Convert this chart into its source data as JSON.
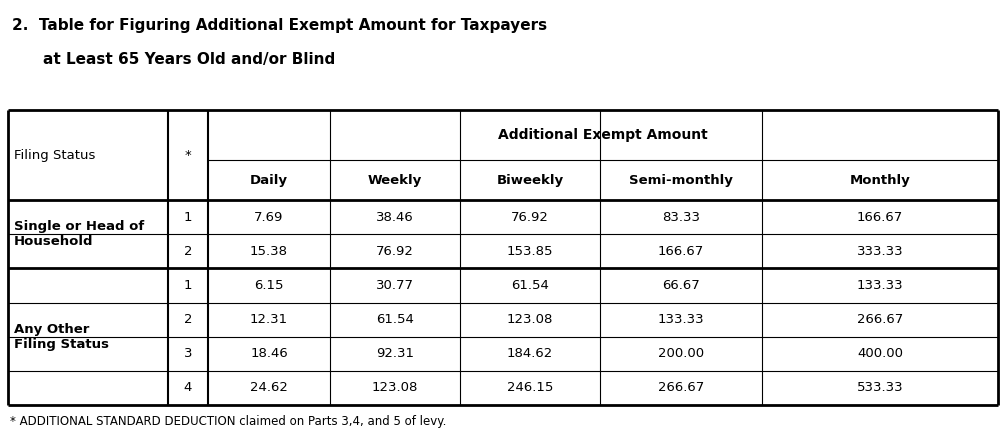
{
  "title_line1": "2.  Table for Figuring Additional Exempt Amount for Taxpayers",
  "title_line2": "    at Least 65 Years Old and/or Blind",
  "col_header_main": "Additional Exempt Amount",
  "col_headers": [
    "Daily",
    "Weekly",
    "Biweekly",
    "Semi-monthly",
    "Monthly"
  ],
  "filing_status_col": "Filing Status",
  "star_col": "*",
  "rows": [
    {
      "group": "Single or Head of\nHousehold",
      "star": "1",
      "values": [
        "7.69",
        "38.46",
        "76.92",
        "83.33",
        "166.67"
      ]
    },
    {
      "group": "",
      "star": "2",
      "values": [
        "15.38",
        "76.92",
        "153.85",
        "166.67",
        "333.33"
      ]
    },
    {
      "group": "Any Other\nFiling Status",
      "star": "1",
      "values": [
        "6.15",
        "30.77",
        "61.54",
        "66.67",
        "133.33"
      ]
    },
    {
      "group": "",
      "star": "2",
      "values": [
        "12.31",
        "61.54",
        "123.08",
        "133.33",
        "266.67"
      ]
    },
    {
      "group": "",
      "star": "3",
      "values": [
        "18.46",
        "92.31",
        "184.62",
        "200.00",
        "400.00"
      ]
    },
    {
      "group": "",
      "star": "4",
      "values": [
        "24.62",
        "123.08",
        "246.15",
        "266.67",
        "533.33"
      ]
    }
  ],
  "footnote": "* ADDITIONAL STANDARD DEDUCTION claimed on Parts 3,4, and 5 of levy.",
  "background": "#ffffff",
  "text_color": "#000000",
  "group1_label": "Single or Head of\nHousehold",
  "group2_label": "Any Other\nFiling Status"
}
